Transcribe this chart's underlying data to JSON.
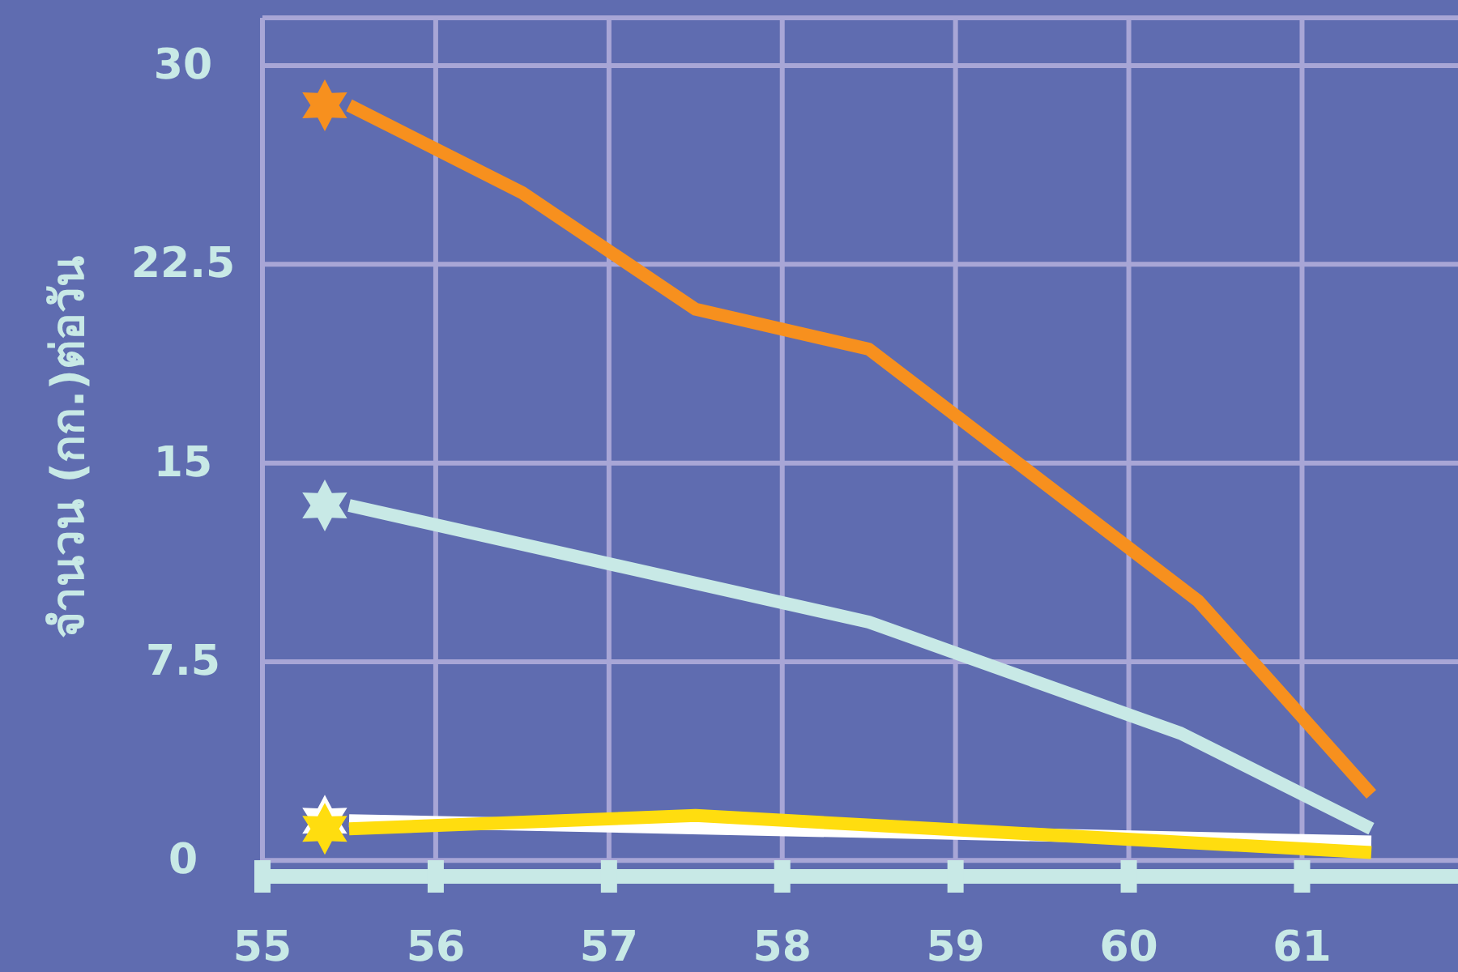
{
  "chart_data": {
    "type": "line",
    "ylabel": "จำนวน (กก.)ต่อวัน",
    "xlim": [
      55,
      61.9
    ],
    "xticks": [
      55,
      56,
      57,
      58,
      59,
      60,
      61
    ],
    "ylim": [
      -0.6,
      31.8
    ],
    "yticks": [
      0,
      7.5,
      15,
      22.5,
      30
    ],
    "grid": true,
    "line_style": "solid",
    "series": [
      {
        "color": "#f7901e",
        "x": [
          55.5,
          56.5,
          57.5,
          58.5,
          60.4,
          61.4
        ],
        "values": [
          28.5,
          25.2,
          20.8,
          19.3,
          9.8,
          2.5
        ]
      },
      {
        "color": "#c8e9e6",
        "x": [
          55.5,
          58.5,
          60.3,
          61.4
        ],
        "values": [
          13.4,
          9.0,
          4.8,
          1.2
        ]
      },
      {
        "color": "#ffffff",
        "x": [
          55.5,
          61.4
        ],
        "values": [
          1.5,
          0.7
        ]
      },
      {
        "color": "#ffdd0f",
        "x": [
          55.5,
          57.5,
          61.4
        ],
        "values": [
          1.2,
          1.7,
          0.3
        ]
      }
    ]
  }
}
